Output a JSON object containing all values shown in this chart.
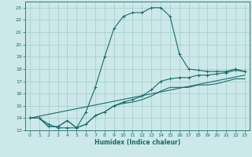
{
  "xlabel": "Humidex (Indice chaleur)",
  "xlim": [
    -0.5,
    23.5
  ],
  "ylim": [
    13,
    23.5
  ],
  "yticks": [
    13,
    14,
    15,
    16,
    17,
    18,
    19,
    20,
    21,
    22,
    23
  ],
  "xticks": [
    0,
    1,
    2,
    3,
    4,
    5,
    6,
    7,
    8,
    9,
    10,
    11,
    12,
    13,
    14,
    15,
    16,
    17,
    18,
    19,
    20,
    21,
    22,
    23
  ],
  "bg_color": "#cce8e8",
  "grid_color": "#a0cccc",
  "line_color": "#1a6b6b",
  "line1_x": [
    0,
    1,
    2,
    3,
    4,
    5,
    6,
    7,
    8,
    9,
    10,
    11,
    12,
    13,
    14,
    15,
    16,
    17,
    18,
    19,
    20,
    21,
    22,
    23
  ],
  "line1_y": [
    14,
    14,
    13.5,
    13.2,
    13.2,
    13.2,
    14.5,
    16.5,
    19.0,
    21.3,
    22.3,
    22.6,
    22.6,
    23.0,
    23.0,
    22.3,
    19.2,
    18.0,
    17.9,
    17.8,
    17.8,
    17.8,
    18.0,
    17.8
  ],
  "line2_x": [
    0,
    1,
    2,
    3,
    4,
    5,
    6,
    7,
    8,
    9,
    10,
    11,
    12,
    13,
    14,
    15,
    16,
    17,
    18,
    19,
    20,
    21,
    22,
    23
  ],
  "line2_y": [
    14,
    14,
    13.3,
    13.3,
    13.8,
    13.2,
    13.5,
    14.2,
    14.5,
    15.0,
    15.3,
    15.5,
    15.8,
    16.3,
    17.0,
    17.2,
    17.3,
    17.3,
    17.5,
    17.5,
    17.6,
    17.7,
    17.9,
    17.8
  ],
  "line3_x": [
    0,
    1,
    2,
    3,
    4,
    5,
    6,
    7,
    8,
    9,
    10,
    11,
    12,
    13,
    14,
    15,
    16,
    17,
    18,
    19,
    20,
    21,
    22,
    23
  ],
  "line3_y": [
    14,
    14,
    13.3,
    13.3,
    13.8,
    13.2,
    13.5,
    14.2,
    14.5,
    15.0,
    15.2,
    15.3,
    15.5,
    15.8,
    16.2,
    16.5,
    16.5,
    16.5,
    16.7,
    16.7,
    16.8,
    17.0,
    17.2,
    17.2
  ],
  "line4_x": [
    0,
    23
  ],
  "line4_y": [
    14,
    17.5
  ]
}
